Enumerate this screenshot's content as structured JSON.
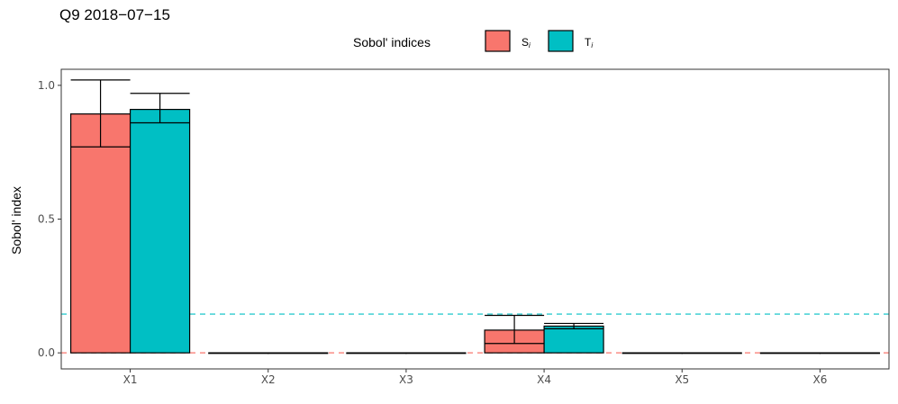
{
  "chart_data": {
    "type": "bar",
    "title": "Q9 2018−07−15",
    "xlabel": "",
    "ylabel": "Sobol' index",
    "categories": [
      "X1",
      "X2",
      "X3",
      "X4",
      "X5",
      "X6"
    ],
    "ylim": [
      -0.06,
      1.06
    ],
    "yticks": [
      0.0,
      0.5,
      1.0
    ],
    "ytick_labels": [
      "0.0",
      "0.5",
      "1.0"
    ],
    "grid": false,
    "legend": {
      "title": "Sobol' indices",
      "position": "top",
      "entries": [
        {
          "label": "S",
          "subscript": "i"
        },
        {
          "label": "T",
          "subscript": "i"
        }
      ]
    },
    "series": [
      {
        "name": "S",
        "subscript": "i",
        "color": "#F8766D",
        "values": [
          0.893,
          0.0,
          0.0,
          0.085,
          0.0,
          0.0
        ],
        "ci_low": [
          0.77,
          0.0,
          0.0,
          0.035,
          0.0,
          0.0
        ],
        "ci_high": [
          1.02,
          0.0,
          0.0,
          0.14,
          0.0,
          0.0
        ]
      },
      {
        "name": "T",
        "subscript": "i",
        "color": "#00BFC4",
        "values": [
          0.91,
          0.0,
          0.0,
          0.1,
          0.0,
          0.0
        ],
        "ci_low": [
          0.86,
          0.0,
          0.0,
          0.09,
          0.0,
          0.0
        ],
        "ci_high": [
          0.97,
          0.0,
          0.0,
          0.11,
          0.0,
          0.0
        ]
      }
    ],
    "reference_lines": [
      {
        "y": 0.145,
        "color": "#00BFC4",
        "style": "dashed"
      },
      {
        "y": 0.0,
        "color": "#F8766D",
        "style": "dashed"
      }
    ]
  }
}
